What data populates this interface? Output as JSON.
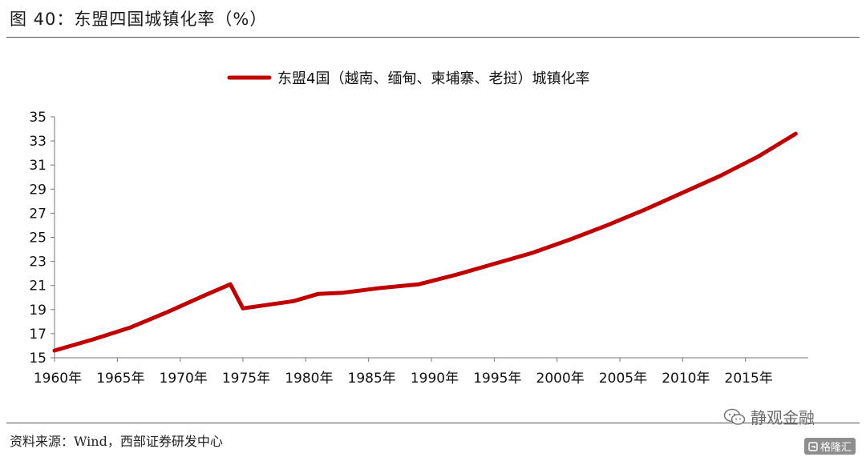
{
  "figure": {
    "title": "图 40：东盟四国城镇化率（%）",
    "source": "资料来源：Wind，西部证券研发中心"
  },
  "watermark": {
    "text": "静观金融",
    "icon": "wechat-icon",
    "badge_text": "格隆汇",
    "badge_icon": "gelonghui-logo-icon"
  },
  "chart_data": {
    "type": "line",
    "title": "",
    "xlabel": "",
    "ylabel": "",
    "legend_position": "top-center",
    "grid": false,
    "xlim": [
      1960,
      2020
    ],
    "ylim": [
      15,
      35
    ],
    "y_ticks": [
      15,
      17,
      19,
      21,
      23,
      25,
      27,
      29,
      31,
      33,
      35
    ],
    "x_ticks": [
      {
        "value": 1960,
        "label": "1960年"
      },
      {
        "value": 1965,
        "label": "1965年"
      },
      {
        "value": 1970,
        "label": "1970年"
      },
      {
        "value": 1975,
        "label": "1975年"
      },
      {
        "value": 1980,
        "label": "1980年"
      },
      {
        "value": 1985,
        "label": "1985年"
      },
      {
        "value": 1990,
        "label": "1990年"
      },
      {
        "value": 1995,
        "label": "1995年"
      },
      {
        "value": 2000,
        "label": "2000年"
      },
      {
        "value": 2005,
        "label": "2005年"
      },
      {
        "value": 2010,
        "label": "2010年"
      },
      {
        "value": 2015,
        "label": "2015年"
      }
    ],
    "series": [
      {
        "name": "东盟4国（越南、缅甸、柬埔寨、老挝）城镇化率",
        "color": "#c00000",
        "x": [
          1960,
          1963,
          1966,
          1969,
          1972,
          1974,
          1975,
          1977,
          1979,
          1980,
          1981,
          1983,
          1986,
          1989,
          1992,
          1995,
          1998,
          2001,
          2004,
          2007,
          2010,
          2013,
          2016,
          2019
        ],
        "y": [
          15.6,
          16.5,
          17.5,
          18.8,
          20.2,
          21.1,
          19.1,
          19.4,
          19.7,
          20.0,
          20.3,
          20.4,
          20.8,
          21.1,
          21.9,
          22.8,
          23.7,
          24.8,
          26.0,
          27.3,
          28.7,
          30.1,
          31.7,
          33.6
        ]
      }
    ]
  }
}
